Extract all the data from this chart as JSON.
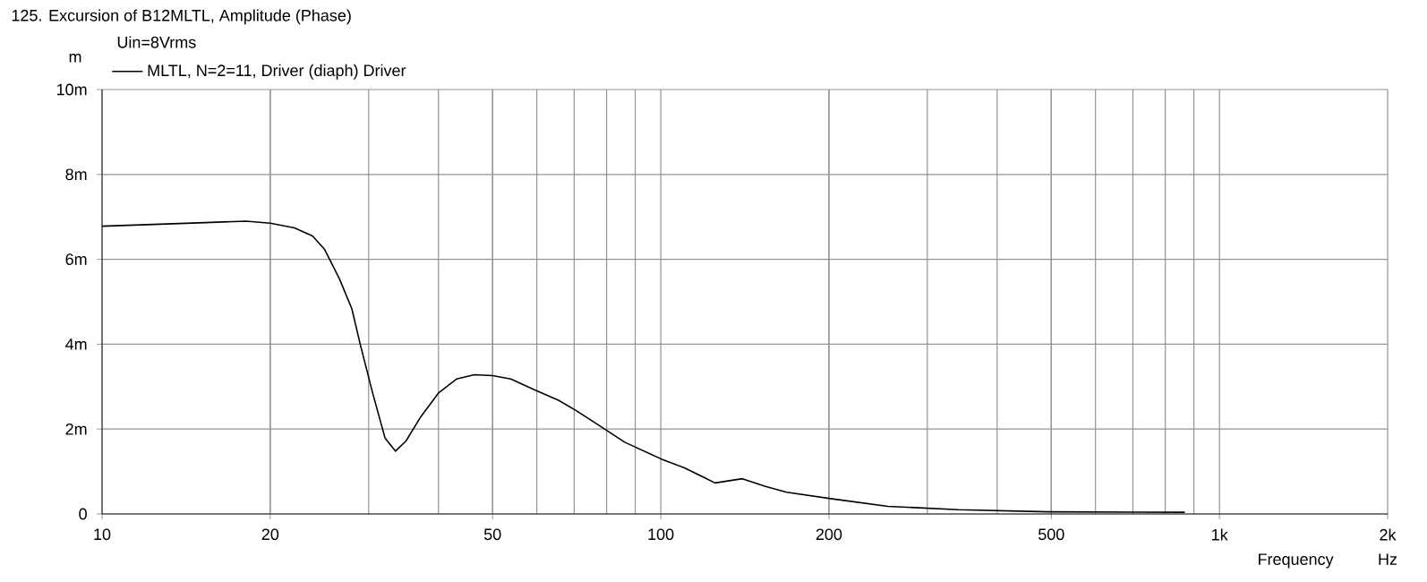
{
  "chart_data": {
    "type": "line",
    "title": "125. Excursion of B12MLTL, Amplitude (Phase)",
    "subtitle": "Uin=8Vrms",
    "xlabel": "Frequency",
    "ylabel": "m",
    "annotations": [
      "Hz"
    ],
    "log": "x",
    "grid": true,
    "legend": "top left",
    "line_style": "solid",
    "marker": "none",
    "xlim": [
      10,
      2000
    ],
    "xticks": [
      10,
      20,
      50,
      100,
      200,
      500,
      {
        "value": 1000,
        "label": "1k"
      },
      {
        "value": 2000,
        "label": "2k"
      }
    ],
    "ylim": [
      0,
      10
    ],
    "yticks": [
      0,
      {
        "value": 2,
        "label": "2m"
      },
      {
        "value": 4,
        "label": "4m"
      },
      {
        "value": 6,
        "label": "6m"
      },
      {
        "value": 8,
        "label": "8m"
      },
      {
        "value": 10,
        "label": "10m"
      }
    ],
    "series": [
      {
        "name": "MLTL, N=2=11, Driver (diaph) Driver",
        "color": "#000000",
        "x": [
          10,
          14.9,
          18.1,
          20.0,
          22.1,
          23.8,
          25.0,
          26.6,
          28.0,
          29.0,
          30.5,
          32.1,
          33.5,
          35.0,
          37.2,
          40.0,
          43.1,
          46.4,
          50.0,
          53.9,
          59.5,
          65.6,
          70.7,
          78.1,
          86.2,
          100,
          110,
          120,
          125,
          140,
          154,
          168,
          204,
          255,
          341,
          493,
          867
        ],
        "values": [
          6.78,
          6.86,
          6.9,
          6.85,
          6.74,
          6.55,
          6.24,
          5.54,
          4.83,
          3.98,
          2.85,
          1.79,
          1.48,
          1.72,
          2.29,
          2.85,
          3.18,
          3.28,
          3.26,
          3.18,
          2.92,
          2.68,
          2.43,
          2.06,
          1.69,
          1.3,
          1.09,
          0.85,
          0.73,
          0.83,
          0.65,
          0.51,
          0.35,
          0.18,
          0.1,
          0.05,
          0.04
        ]
      }
    ]
  }
}
